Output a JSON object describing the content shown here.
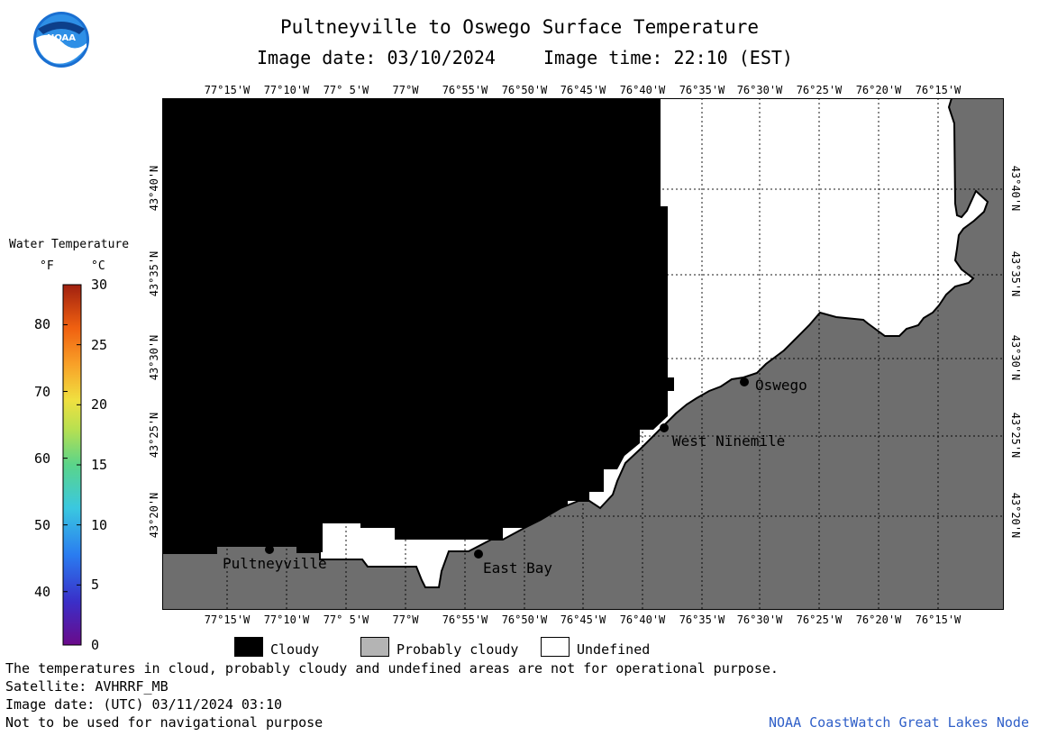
{
  "header": {
    "title": "Pultneyville to Oswego Surface Temperature",
    "image_date_label": "Image date: 03/10/2024",
    "image_time_label": "Image time: 22:10 (EST)"
  },
  "logo": {
    "text": "NOAA",
    "icon": "noaa-logo-icon"
  },
  "colorbar": {
    "title": "Water Temperature",
    "unit_f": "°F",
    "unit_c": "°C",
    "f_ticks": [
      "80",
      "70",
      "60",
      "50",
      "40"
    ],
    "c_ticks": [
      "30",
      "25",
      "20",
      "15",
      "10",
      "5",
      "0"
    ]
  },
  "map": {
    "lon_labels": [
      "77°15'W",
      "77°10'W",
      "77° 5'W",
      "77°W",
      "76°55'W",
      "76°50'W",
      "76°45'W",
      "76°40'W",
      "76°35'W",
      "76°30'W",
      "76°25'W",
      "76°20'W",
      "76°15'W"
    ],
    "lat_labels": [
      "43°40'N",
      "43°35'N",
      "43°30'N",
      "43°25'N",
      "43°20'N"
    ],
    "places": [
      {
        "name": "Oswego"
      },
      {
        "name": "West Ninemile"
      },
      {
        "name": "Pultneyville"
      },
      {
        "name": "East Bay"
      }
    ],
    "colors": {
      "cloudy": "#000000",
      "land": "#6e6e6e",
      "undefined": "#ffffff",
      "probably_cloudy": "#b4b4b4"
    }
  },
  "legend": {
    "cloudy": "Cloudy",
    "probably_cloudy": "Probably cloudy",
    "undefined": "Undefined"
  },
  "footer": {
    "note": "The temperatures in cloud, probably cloudy and undefined areas are not for operational purpose.",
    "satellite": "Satellite: AVHRRF_MB",
    "utc_date": "Image date: (UTC) 03/11/2024  03:10",
    "nav_warning": "Not to be used for navigational purpose",
    "credit": "NOAA CoastWatch Great Lakes Node"
  }
}
